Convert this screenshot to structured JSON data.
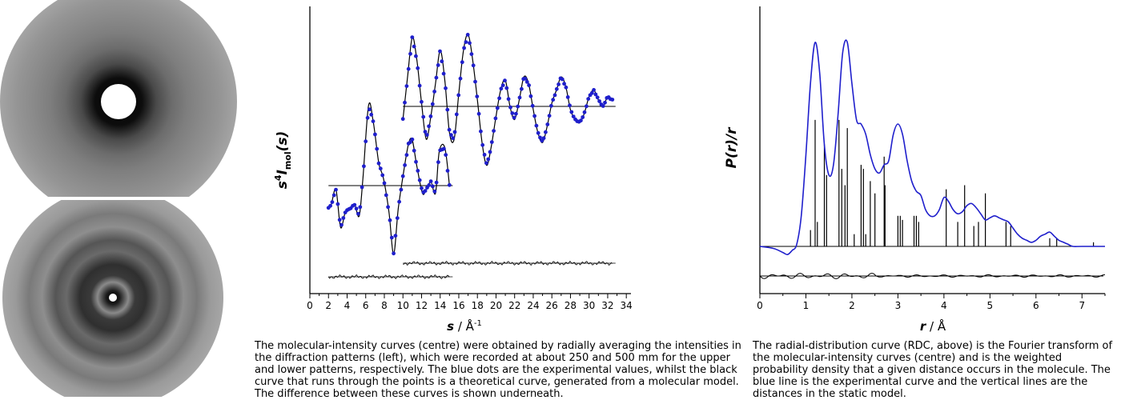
{
  "colors": {
    "experimental": "#1f1fcc",
    "theory": "#000000",
    "rdc": "#1f1fcc"
  },
  "captions": {
    "middle": "The molecular-intensity curves (centre) were obtained by radially averaging the intensities in the diffraction patterns (left), which were recorded at about 250 and 500 mm for the upper and lower patterns, respectively. The blue dots are the experimental values, whilst the black curve that runs through the points is a theoretical curve, generated from a molecular model. The difference between these curves is shown underneath.",
    "right": "The radial-distribution curve (RDC, above) is the Fourier transform of the molecular-intensity curves (centre) and is the weighted probability density that a given distance occurs in the molecule. The blue line is the experimental curve and the vertical lines are the distances in the static model."
  },
  "chart_data": [
    {
      "type": "scatter",
      "xlabel_var": "s",
      "xlabel_unit": " / Å",
      "xlabel_exp": "-1",
      "ylabel_main": "s",
      "ylabel_sup": "4",
      "ylabel_I": "I",
      "ylabel_sub": "mol",
      "ylabel_tail": "(s)",
      "xlim": [
        0,
        34.5
      ],
      "xticks": [
        "0",
        "2",
        "4",
        "6",
        "8",
        "10",
        "12",
        "14",
        "16",
        "18",
        "20",
        "22",
        "24",
        "26",
        "28",
        "30",
        "32",
        "34"
      ],
      "series": [
        {
          "range": [
            2,
            15
          ],
          "x": [
            2.0,
            2.3,
            2.8,
            3.3,
            3.8,
            4.3,
            4.8,
            5.3,
            5.7,
            6.3,
            6.8,
            7.4,
            7.9,
            8.5,
            9.0,
            9.5,
            10.1,
            10.6,
            11.0,
            11.5,
            12.1,
            12.5,
            13.0,
            13.5,
            13.9,
            14.5,
            15.0
          ],
          "y": [
            -0.3,
            -0.25,
            -0.05,
            -0.55,
            -0.35,
            -0.3,
            -0.25,
            -0.4,
            0.1,
            1.05,
            0.85,
            0.3,
            0.1,
            -0.35,
            -0.9,
            -0.3,
            0.2,
            0.55,
            0.6,
            0.25,
            -0.1,
            -0.05,
            0.05,
            -0.1,
            0.45,
            0.5,
            0.0
          ]
        },
        {
          "range": [
            10,
            32.5
          ],
          "x": [
            10.0,
            10.5,
            11.0,
            11.5,
            12.0,
            12.5,
            13.0,
            13.5,
            14.0,
            14.5,
            15.0,
            15.5,
            16.0,
            16.5,
            17.0,
            17.5,
            18.0,
            18.5,
            19.0,
            19.5,
            20.0,
            20.5,
            21.0,
            21.5,
            22.0,
            22.5,
            23.0,
            23.5,
            24.0,
            24.5,
            25.0,
            25.5,
            26.0,
            26.5,
            27.0,
            27.5,
            28.0,
            28.5,
            29.0,
            29.5,
            30.0,
            30.5,
            31.0,
            31.5,
            32.0,
            32.5
          ],
          "y": [
            -0.2,
            0.45,
            1.05,
            0.7,
            0.05,
            -0.5,
            -0.15,
            0.35,
            0.85,
            0.4,
            -0.4,
            -0.5,
            0.2,
            0.85,
            1.1,
            0.7,
            0.1,
            -0.55,
            -0.9,
            -0.6,
            -0.15,
            0.25,
            0.4,
            0.0,
            -0.2,
            0.1,
            0.45,
            0.35,
            -0.05,
            -0.4,
            -0.55,
            -0.3,
            0.05,
            0.25,
            0.45,
            0.3,
            -0.05,
            -0.2,
            -0.25,
            -0.1,
            0.15,
            0.25,
            0.1,
            0.0,
            0.15,
            0.1
          ]
        }
      ]
    },
    {
      "type": "line",
      "xlabel_var": "r",
      "xlabel_unit": " / Å",
      "ylabel": "P(r)/r",
      "xlim": [
        0,
        7.5
      ],
      "xticks": [
        "0",
        "1",
        "2",
        "3",
        "4",
        "5",
        "6",
        "7"
      ],
      "rdc": {
        "x": [
          0,
          0.3,
          0.5,
          0.6,
          0.7,
          0.8,
          0.9,
          1.0,
          1.1,
          1.2,
          1.3,
          1.4,
          1.5,
          1.6,
          1.7,
          1.8,
          1.9,
          2.0,
          2.1,
          2.2,
          2.3,
          2.4,
          2.5,
          2.6,
          2.7,
          2.8,
          2.9,
          3.0,
          3.1,
          3.2,
          3.3,
          3.4,
          3.5,
          3.6,
          3.7,
          3.8,
          3.9,
          4.0,
          4.1,
          4.2,
          4.3,
          4.4,
          4.5,
          4.6,
          4.7,
          4.8,
          4.9,
          5.0,
          5.1,
          5.2,
          5.3,
          5.4,
          5.5,
          5.6,
          5.7,
          5.8,
          5.9,
          6.0,
          6.1,
          6.2,
          6.3,
          6.4,
          6.5,
          6.6,
          6.7,
          6.8,
          7.0,
          7.5
        ],
        "y": [
          0.0,
          -0.01,
          -0.03,
          -0.04,
          -0.02,
          0.01,
          0.15,
          0.45,
          0.8,
          1.0,
          0.85,
          0.5,
          0.35,
          0.4,
          0.65,
          0.95,
          1.0,
          0.8,
          0.62,
          0.6,
          0.55,
          0.45,
          0.38,
          0.36,
          0.4,
          0.42,
          0.55,
          0.6,
          0.55,
          0.42,
          0.32,
          0.27,
          0.25,
          0.18,
          0.15,
          0.15,
          0.18,
          0.24,
          0.22,
          0.18,
          0.16,
          0.17,
          0.2,
          0.21,
          0.19,
          0.16,
          0.13,
          0.14,
          0.15,
          0.14,
          0.13,
          0.12,
          0.09,
          0.06,
          0.04,
          0.03,
          0.02,
          0.03,
          0.05,
          0.06,
          0.07,
          0.05,
          0.03,
          0.02,
          0.01,
          0.0,
          0.0,
          0.0
        ]
      },
      "sticks": {
        "r": [
          1.1,
          1.2,
          1.25,
          1.4,
          1.45,
          1.72,
          1.78,
          1.85,
          1.9,
          2.05,
          2.2,
          2.25,
          2.3,
          2.4,
          2.5,
          2.7,
          2.72,
          3.0,
          3.05,
          3.1,
          3.35,
          3.4,
          3.45,
          4.05,
          4.3,
          4.45,
          4.65,
          4.75,
          4.9,
          5.35,
          5.45,
          6.3,
          6.45,
          7.25
        ],
        "h": [
          0.08,
          0.62,
          0.12,
          0.5,
          0.35,
          0.62,
          0.38,
          0.3,
          0.58,
          0.06,
          0.4,
          0.38,
          0.06,
          0.32,
          0.26,
          0.44,
          0.3,
          0.15,
          0.15,
          0.13,
          0.15,
          0.15,
          0.12,
          0.28,
          0.12,
          0.3,
          0.1,
          0.12,
          0.26,
          0.12,
          0.1,
          0.04,
          0.04,
          0.02
        ]
      }
    }
  ]
}
